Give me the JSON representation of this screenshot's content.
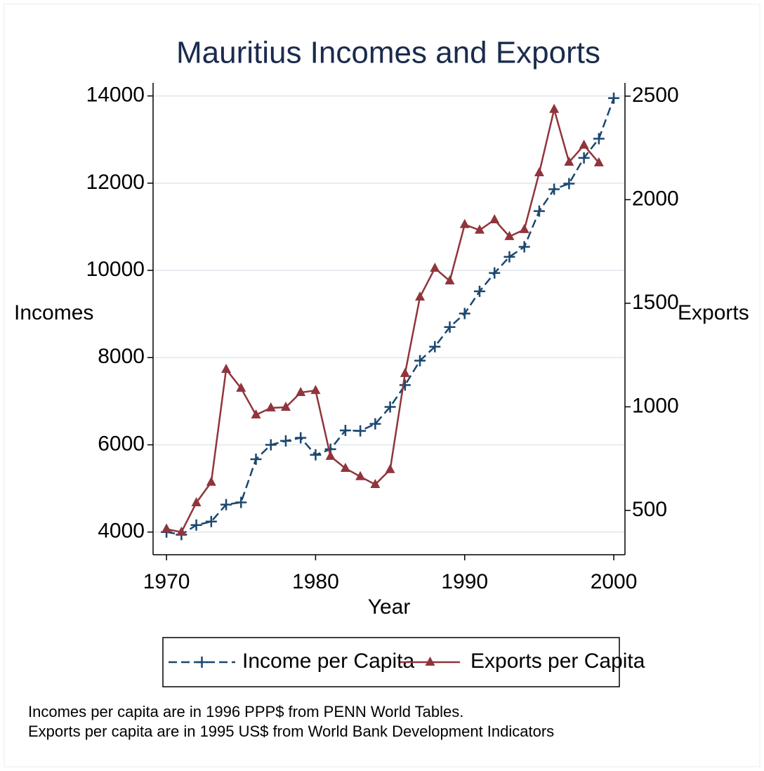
{
  "chart_data": {
    "type": "line",
    "title": "Mauritius Incomes and Exports",
    "x_label": "Year",
    "y_label": "Incomes",
    "y2_label": "Exports",
    "x": [
      1970,
      1971,
      1972,
      1973,
      1974,
      1975,
      1976,
      1977,
      1978,
      1979,
      1980,
      1981,
      1982,
      1983,
      1984,
      1985,
      1986,
      1987,
      1988,
      1989,
      1990,
      1991,
      1992,
      1993,
      1994,
      1995,
      1996,
      1997,
      1998,
      1999,
      2000
    ],
    "series": [
      {
        "name": "Income per Capita",
        "color": "#1a476f",
        "dash": true,
        "marker": "plus",
        "values": [
          4000,
          3940,
          4160,
          4240,
          4630,
          4680,
          5670,
          6000,
          6090,
          6160,
          5770,
          5900,
          6330,
          6320,
          6480,
          6870,
          7370,
          7930,
          8250,
          8700,
          9010,
          9520,
          9940,
          10310,
          10540,
          11360,
          11860,
          11990,
          12580,
          13020,
          13950
        ]
      },
      {
        "name": "Exports per Capita",
        "color": "#90353b",
        "dash": false,
        "marker": "triangle",
        "axis": "y2",
        "values": [
          410,
          395,
          537,
          636,
          1181,
          1090,
          961,
          995,
          998,
          1069,
          1079,
          761,
          703,
          663,
          625,
          697,
          1161,
          1530,
          1669,
          1608,
          1880,
          1853,
          1903,
          1822,
          1856,
          2130,
          2436,
          2181,
          2263,
          2178,
          null
        ]
      }
    ],
    "xlim": [
      1969.1,
      2000.75
    ],
    "xticks": [
      1970,
      1980,
      1990,
      2000
    ],
    "ylim": [
      3480,
      14300
    ],
    "yticks": [
      4000,
      6000,
      8000,
      10000,
      12000,
      14000
    ],
    "y2lim": [
      286,
      2564
    ],
    "y2ticks": [
      500,
      1000,
      1500,
      2000,
      2500
    ],
    "grid": true,
    "legend": "bottom",
    "notes": [
      "Incomes per capita are in 1996 PPP$ from PENN World Tables.",
      "Exports per capita are in 1995 US$ from World Bank Development Indicators"
    ]
  }
}
